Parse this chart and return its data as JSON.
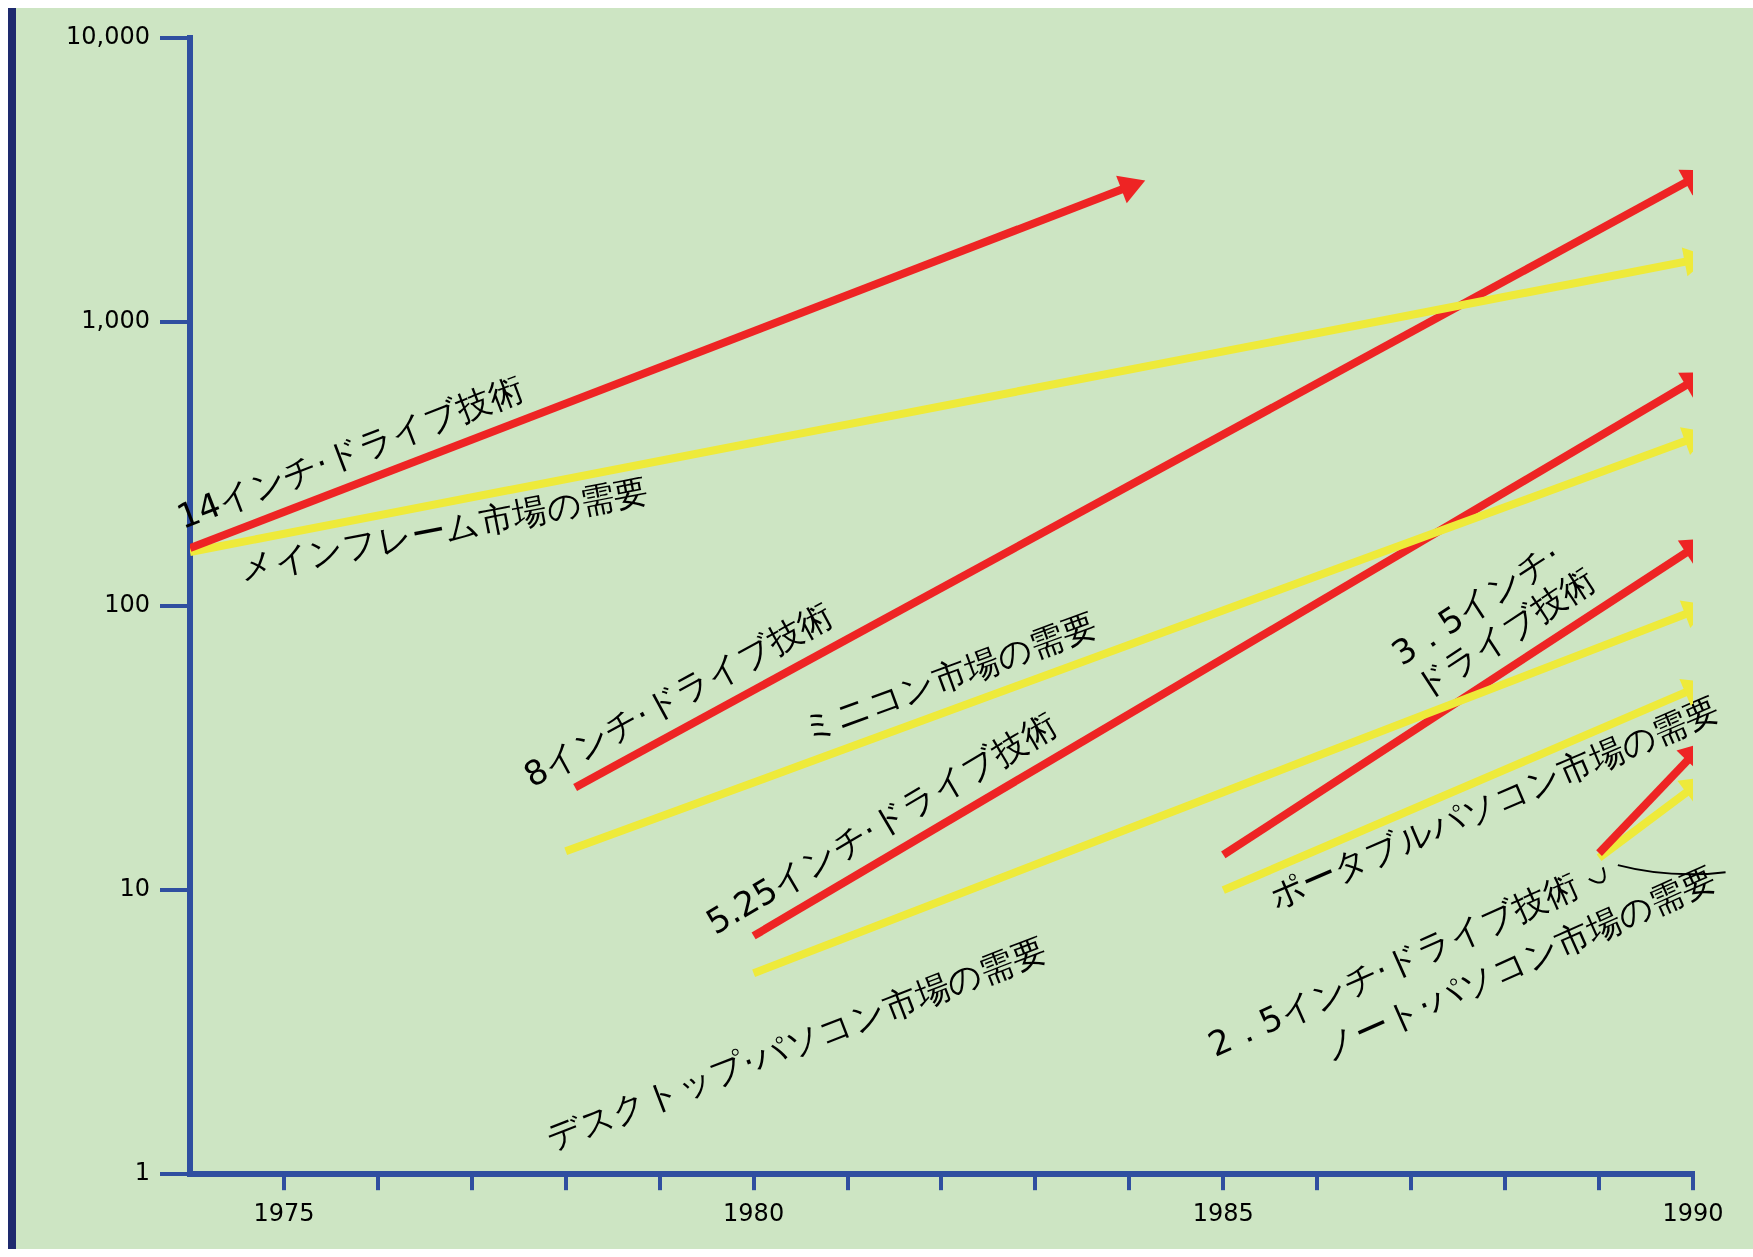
{
  "chart_data": {
    "type": "line",
    "log": "y",
    "legend": false,
    "grid": false,
    "marker": "triangle",
    "line_style": "solid",
    "xlim": [
      1974,
      1990
    ],
    "xticks": [
      {
        "value": 1975,
        "label": "1975"
      },
      {
        "value": 1976,
        "label": null
      },
      {
        "value": 1977,
        "label": null
      },
      {
        "value": 1978,
        "label": null
      },
      {
        "value": 1979,
        "label": null
      },
      {
        "value": 1980,
        "label": "1980"
      },
      {
        "value": 1981,
        "label": null
      },
      {
        "value": 1982,
        "label": null
      },
      {
        "value": 1983,
        "label": null
      },
      {
        "value": 1984,
        "label": null
      },
      {
        "value": 1985,
        "label": "1985"
      },
      {
        "value": 1986,
        "label": null
      },
      {
        "value": 1987,
        "label": null
      },
      {
        "value": 1988,
        "label": null
      },
      {
        "value": 1989,
        "label": null
      },
      {
        "value": 1990,
        "label": "1990"
      }
    ],
    "ylim": [
      1,
      10000
    ],
    "yticks": [
      {
        "value": 1,
        "label": "1"
      },
      {
        "value": 10,
        "label": "10"
      },
      {
        "value": 100,
        "label": "100"
      },
      {
        "value": 1000,
        "label": "1,000"
      },
      {
        "value": 10000,
        "label": "10,000"
      }
    ],
    "series": [
      {
        "name": "14インチ·ドライブ技術",
        "color": "#ee2424",
        "x": [
          1974,
          1984
        ],
        "values": [
          160,
          3000
        ]
      },
      {
        "name": "メインフレーム市場の需要",
        "color": "#eeea3a",
        "x": [
          1974,
          1990
        ],
        "values": [
          155,
          1650
        ]
      },
      {
        "name": "8インチ·ドライブ技術",
        "color": "#ee2424",
        "x": [
          1978.1,
          1990
        ],
        "values": [
          23,
          3200
        ]
      },
      {
        "name": "ミニコン市場の需要",
        "color": "#eeea3a",
        "x": [
          1978,
          1990
        ],
        "values": [
          13.7,
          390
        ]
      },
      {
        "name": "5.25インチ·ドライブ技術",
        "color": "#ee2424",
        "x": [
          1980,
          1990
        ],
        "values": [
          6.9,
          620
        ]
      },
      {
        "name": "デスクトップ·パソコン市場の需要",
        "color": "#eeea3a",
        "x": [
          1980,
          1990
        ],
        "values": [
          5.1,
          96
        ]
      },
      {
        "name": "3．5インチ·ドライブ技術",
        "color": "#ee2424",
        "x": [
          1985,
          1990
        ],
        "values": [
          13.3,
          160
        ]
      },
      {
        "name": "ポータブルパソコン市場の需要",
        "color": "#eeea3a",
        "x": [
          1985,
          1990
        ],
        "values": [
          10,
          51
        ]
      },
      {
        "name": "2．5インチ·ドライブ技術",
        "color": "#ee2424",
        "x": [
          1989,
          1990
        ],
        "values": [
          13.5,
          30
        ]
      },
      {
        "name": "ノート·パソコン市場の需要",
        "color": "#eeea3a",
        "x": [
          1989,
          1990
        ],
        "values": [
          13,
          23
        ]
      }
    ]
  }
}
